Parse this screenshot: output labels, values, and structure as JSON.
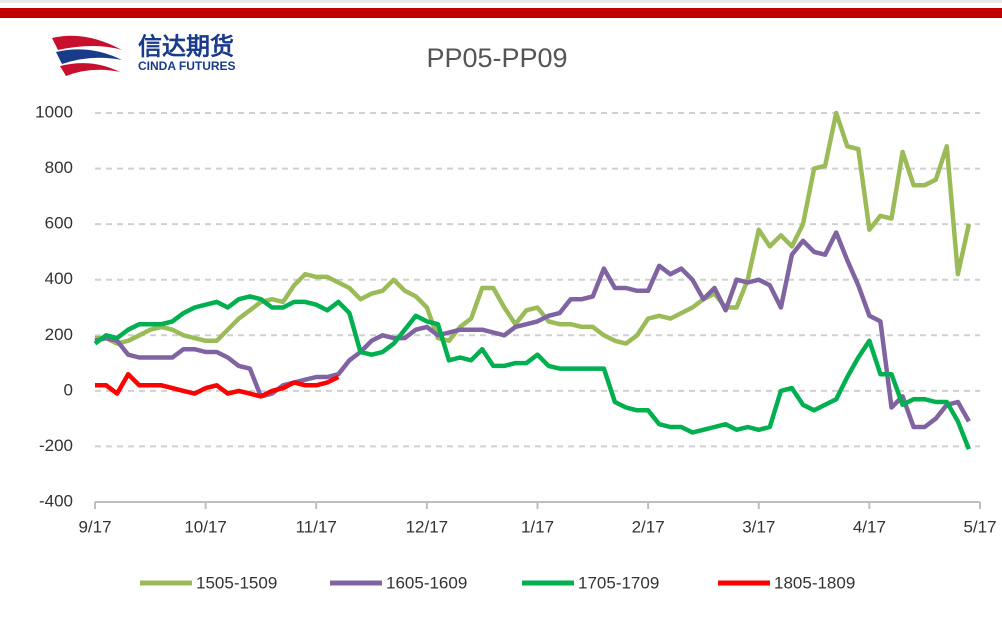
{
  "brand": {
    "name_cn": "信达期货",
    "name_en": "CINDA FUTURES"
  },
  "chart_data": {
    "type": "line",
    "title": "PP05-PP09",
    "x": [
      0,
      0.1,
      0.2,
      0.3,
      0.4,
      0.5,
      0.6,
      0.7,
      0.8,
      0.9,
      1,
      1.1,
      1.2,
      1.3,
      1.4,
      1.5,
      1.6,
      1.7,
      1.8,
      1.9,
      2,
      2.1,
      2.2,
      2.3,
      2.4,
      2.5,
      2.6,
      2.7,
      2.8,
      2.9,
      3,
      3.1,
      3.2,
      3.3,
      3.4,
      3.5,
      3.6,
      3.7,
      3.8,
      3.9,
      4,
      4.1,
      4.2,
      4.3,
      4.4,
      4.5,
      4.6,
      4.7,
      4.8,
      4.9,
      5,
      5.1,
      5.2,
      5.3,
      5.4,
      5.5,
      5.6,
      5.7,
      5.8,
      5.9,
      6,
      6.1,
      6.2,
      6.3,
      6.4,
      6.5,
      6.6,
      6.7,
      6.8,
      6.9,
      7,
      7.1,
      7.2,
      7.3,
      7.4,
      7.5,
      7.6,
      7.7,
      7.8,
      7.9,
      8
    ],
    "xlim": [
      0,
      8
    ],
    "xticks": [
      {
        "value": 0,
        "label": "9/17"
      },
      {
        "value": 1,
        "label": "10/17"
      },
      {
        "value": 2,
        "label": "11/17"
      },
      {
        "value": 3,
        "label": "12/17"
      },
      {
        "value": 4,
        "label": "1/17"
      },
      {
        "value": 5,
        "label": "2/17"
      },
      {
        "value": 6,
        "label": "3/17"
      },
      {
        "value": 7,
        "label": "4/17"
      },
      {
        "value": 8,
        "label": "5/17"
      }
    ],
    "ylim": [
      -400,
      1000
    ],
    "yticks": [
      -400,
      -200,
      0,
      200,
      400,
      600,
      800,
      1000
    ],
    "grid": true,
    "legend": "bottom",
    "series": [
      {
        "name": "1505-1509",
        "color": "#9bbb59",
        "values": [
          190,
          190,
          170,
          180,
          200,
          220,
          230,
          220,
          200,
          190,
          180,
          180,
          220,
          260,
          290,
          320,
          330,
          320,
          380,
          420,
          410,
          410,
          390,
          370,
          330,
          350,
          360,
          400,
          360,
          340,
          300,
          190,
          180,
          230,
          260,
          370,
          370,
          300,
          240,
          290,
          300,
          250,
          240,
          240,
          230,
          230,
          200,
          180,
          170,
          200,
          260,
          270,
          260,
          280,
          300,
          330,
          350,
          300,
          300,
          400,
          580,
          520,
          560,
          520,
          600,
          800,
          810,
          1000,
          880,
          870,
          580,
          630,
          620,
          860,
          740,
          740,
          760,
          880,
          420,
          600,
          null
        ]
      },
      {
        "name": "1605-1609",
        "color": "#8064a2",
        "values": [
          180,
          190,
          180,
          130,
          120,
          120,
          120,
          120,
          150,
          150,
          140,
          140,
          120,
          90,
          80,
          -20,
          -10,
          20,
          30,
          40,
          50,
          50,
          60,
          110,
          140,
          180,
          200,
          190,
          190,
          220,
          230,
          200,
          210,
          220,
          220,
          220,
          210,
          200,
          230,
          240,
          250,
          270,
          280,
          330,
          330,
          340,
          440,
          370,
          370,
          360,
          360,
          450,
          420,
          440,
          400,
          330,
          370,
          290,
          400,
          390,
          400,
          380,
          300,
          490,
          540,
          500,
          490,
          570,
          470,
          380,
          270,
          250,
          -60,
          -20,
          -130,
          -130,
          -100,
          -50,
          -40,
          -110,
          null
        ]
      },
      {
        "name": "1705-1709",
        "color": "#00b050",
        "values": [
          170,
          200,
          190,
          220,
          240,
          240,
          240,
          250,
          280,
          300,
          310,
          320,
          300,
          330,
          340,
          330,
          300,
          300,
          320,
          320,
          310,
          290,
          320,
          280,
          140,
          130,
          140,
          170,
          220,
          270,
          250,
          240,
          110,
          120,
          110,
          150,
          90,
          90,
          100,
          100,
          130,
          90,
          80,
          80,
          80,
          80,
          80,
          -40,
          -60,
          -70,
          -70,
          -120,
          -130,
          -130,
          -150,
          -140,
          -130,
          -120,
          -140,
          -130,
          -140,
          -130,
          0,
          10,
          -50,
          -70,
          -50,
          -30,
          50,
          120,
          180,
          60,
          60,
          -50,
          -30,
          -30,
          -40,
          -40,
          -110,
          -210,
          null
        ]
      },
      {
        "name": "1805-1809",
        "color": "#ff0000",
        "values": [
          20,
          20,
          -10,
          60,
          20,
          20,
          20,
          10,
          0,
          -10,
          10,
          20,
          -10,
          0,
          -10,
          -20,
          0,
          10,
          30,
          20,
          20,
          30,
          50,
          null,
          null,
          null,
          null,
          null,
          null,
          null,
          null,
          null,
          null,
          null,
          null,
          null,
          null,
          null,
          null,
          null,
          null,
          null,
          null,
          null,
          null,
          null,
          null,
          null,
          null,
          null,
          null,
          null,
          null,
          null,
          null,
          null,
          null,
          null,
          null,
          null,
          null,
          null,
          null,
          null,
          null,
          null,
          null,
          null,
          null,
          null,
          null,
          null,
          null,
          null,
          null,
          null,
          null,
          null,
          null,
          null,
          null
        ]
      }
    ]
  }
}
